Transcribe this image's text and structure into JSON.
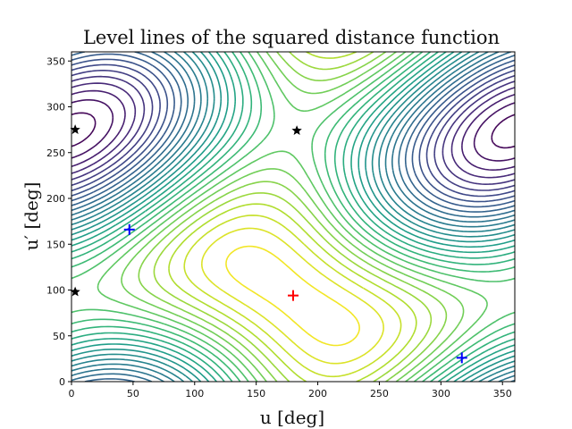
{
  "chart_data": {
    "type": "contour",
    "title": "Level lines of the squared distance function",
    "xlabel": "u [deg]",
    "ylabel": "u′ [deg]",
    "xlim": [
      0,
      360
    ],
    "ylim": [
      0,
      360
    ],
    "xticks": [
      0,
      50,
      100,
      150,
      200,
      250,
      300,
      350
    ],
    "yticks": [
      0,
      50,
      100,
      150,
      200,
      250,
      300,
      350
    ],
    "colormap": "viridis",
    "grid": false,
    "markers": {
      "minimum": {
        "color": "#ff0000",
        "symbol": "plus",
        "points": [
          [
            180,
            94
          ]
        ]
      },
      "local_minima": {
        "color": "#0000ff",
        "symbol": "plus",
        "points": [
          [
            47,
            166
          ],
          [
            317,
            26
          ]
        ]
      },
      "saddles": {
        "color": "#000000",
        "symbol": "star",
        "points": [
          [
            3,
            275
          ],
          [
            183,
            274
          ],
          [
            3,
            98
          ]
        ]
      }
    }
  }
}
